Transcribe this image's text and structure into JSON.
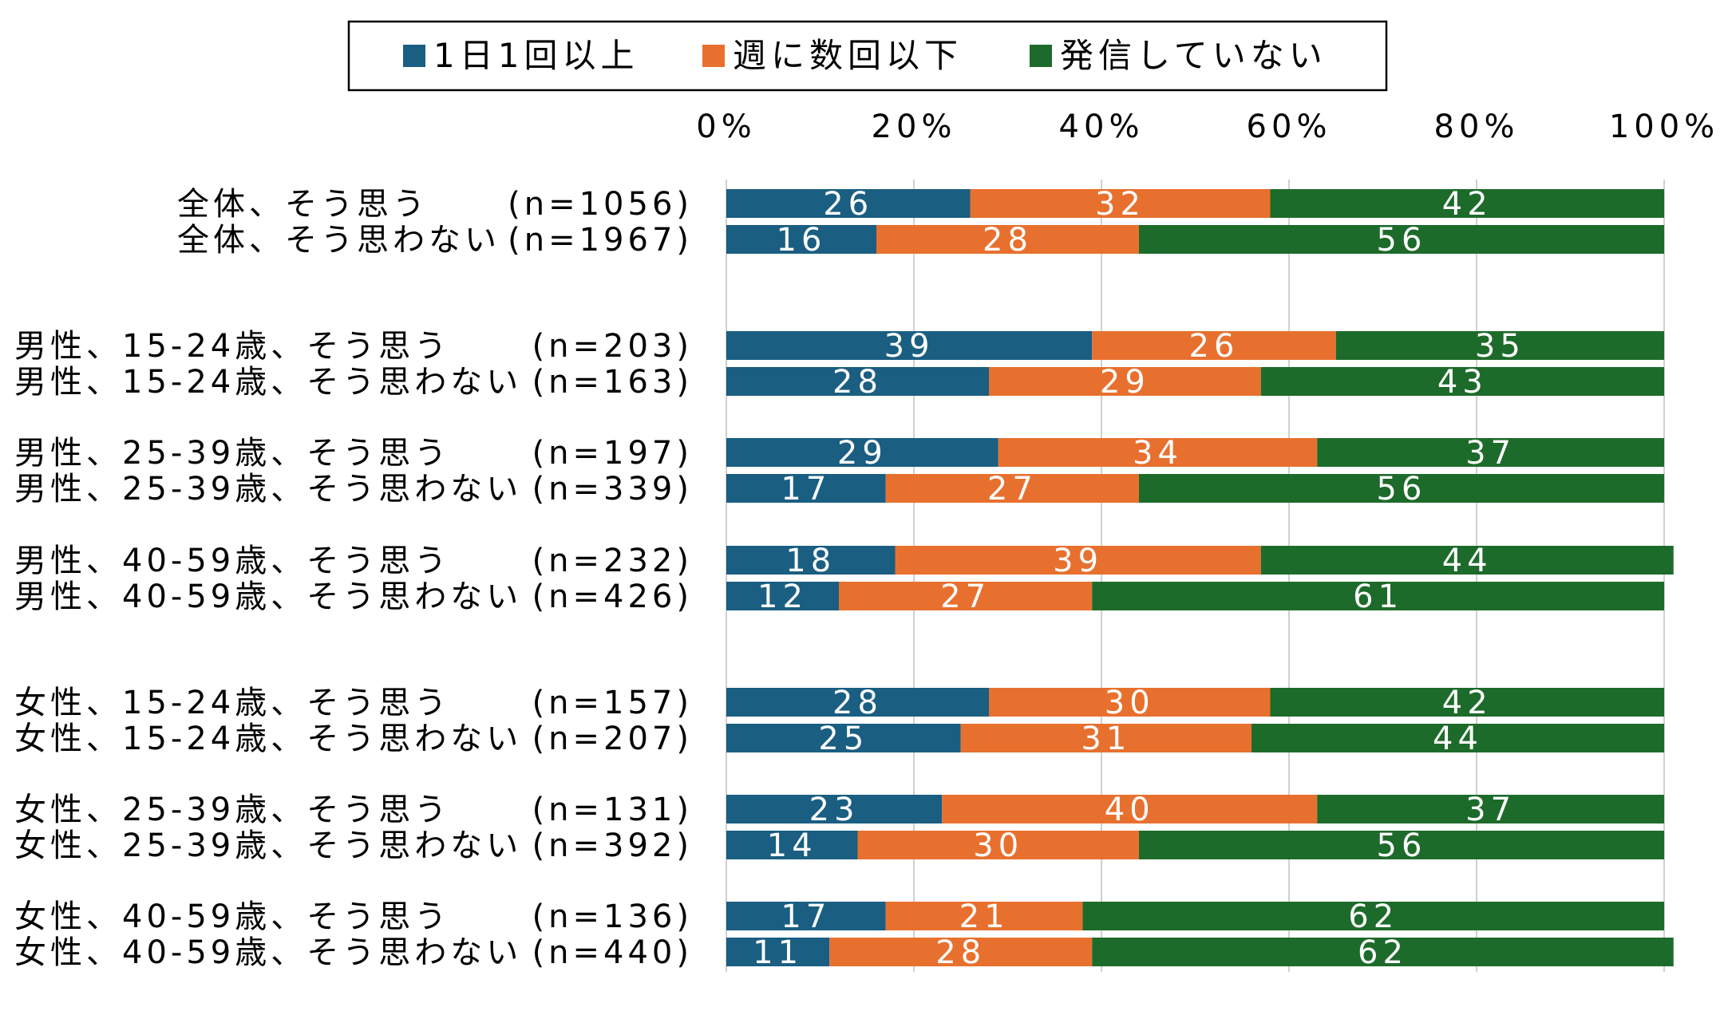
{
  "chart_data": {
    "type": "bar",
    "orientation": "horizontal",
    "stacked": true,
    "percent": true,
    "xlim": [
      0,
      100
    ],
    "x_ticks": [
      "0%",
      "20%",
      "40%",
      "60%",
      "80%",
      "100%"
    ],
    "legend_position": "top",
    "grid": true,
    "categories": [
      "全体、そう思う",
      "全体、そう思わない",
      "男性、15-24歳、そう思う",
      "男性、15-24歳、そう思わない",
      "男性、25-39歳、そう思う",
      "男性、25-39歳、そう思わない",
      "男性、40-59歳、そう思う",
      "男性、40-59歳、そう思わない",
      "女性、15-24歳、そう思う",
      "女性、15-24歳、そう思わない",
      "女性、25-39歳、そう思う",
      "女性、25-39歳、そう思わない",
      "女性、40-59歳、そう思う",
      "女性、40-59歳、そう思わない"
    ],
    "n_labels": [
      "(n=1056)",
      "(n=1967)",
      "(n=203)",
      "(n=163)",
      "(n=197)",
      "(n=339)",
      "(n=232)",
      "(n=426)",
      "(n=157)",
      "(n=207)",
      "(n=131)",
      "(n=392)",
      "(n=136)",
      "(n=440)"
    ],
    "series": [
      {
        "name": "1日1回以上",
        "color": "#1a5e82",
        "values": [
          26,
          16,
          39,
          28,
          29,
          17,
          18,
          12,
          28,
          25,
          23,
          14,
          17,
          11
        ]
      },
      {
        "name": "週に数回以下",
        "color": "#e8702e",
        "values": [
          32,
          28,
          26,
          29,
          34,
          27,
          39,
          27,
          30,
          31,
          40,
          30,
          21,
          28
        ]
      },
      {
        "name": "発信していない",
        "color": "#1d6b2a",
        "values": [
          42,
          56,
          35,
          43,
          37,
          56,
          44,
          61,
          42,
          44,
          37,
          56,
          62,
          62
        ]
      }
    ]
  }
}
